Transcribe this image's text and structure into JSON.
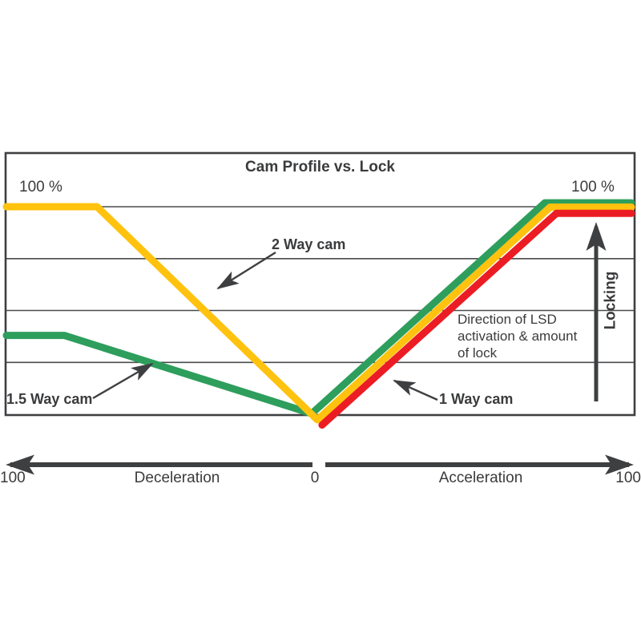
{
  "title": "Cam Profile vs. Lock",
  "labels": {
    "left_100": "100 %",
    "right_100": "100 %",
    "two_way": "2 Way cam",
    "one_five_way": "1.5 Way cam",
    "one_way": "1 Way cam",
    "direction_note": "Direction of LSD\nactivation & amount\nof lock",
    "locking": "Locking"
  },
  "axis": {
    "left_value": "100",
    "decel_label": "Deceleration",
    "center_value": "0",
    "accel_label": "Acceleration",
    "right_value": "100"
  },
  "colors": {
    "two_way": "#FFC20E",
    "one_five_way": "#2E9E5C",
    "one_way": "#EC1C24",
    "ink": "#3E3F41",
    "gridline": "#4A4B4D",
    "background": "#FFFFFF"
  },
  "chart_data": {
    "type": "line",
    "title": "Cam Profile vs. Lock",
    "x_axis": {
      "label_left": "Deceleration",
      "label_right": "Acceleration",
      "range": [
        -100,
        100
      ],
      "ticks": [
        {
          "value": -100,
          "label": "100"
        },
        {
          "value": 0,
          "label": "0"
        },
        {
          "value": 100,
          "label": "100"
        }
      ]
    },
    "y_axis": {
      "label": "Locking",
      "unit": "%",
      "range": [
        0,
        100
      ],
      "top_label": "100 %",
      "gridlines_pct": [
        100,
        75,
        50,
        25
      ],
      "grid": true
    },
    "legend_position": "inline-annotations",
    "annotations": [
      "2 Way cam",
      "1.5 Way cam",
      "1 Way cam",
      "Direction of LSD activation & amount of lock",
      "Locking"
    ],
    "series": [
      {
        "name": "1.5 Way cam",
        "color": "#2E9E5C",
        "points": [
          [
            -100,
            38
          ],
          [
            -81.5,
            38
          ],
          [
            -2.3,
            0.3
          ],
          [
            72.3,
            101.9
          ],
          [
            100,
            101.9
          ]
        ]
      },
      {
        "name": "2 Way cam",
        "color": "#FFC20E",
        "points": [
          [
            -100,
            100
          ],
          [
            -71,
            100
          ],
          [
            -0.5,
            -2.7
          ],
          [
            74,
            99.8
          ],
          [
            100,
            99.8
          ]
        ]
      },
      {
        "name": "1 Way cam",
        "color": "#EC1C24",
        "points": [
          [
            1,
            -5.2
          ],
          [
            76,
            96.8
          ],
          [
            100,
            96.8
          ]
        ]
      }
    ]
  }
}
